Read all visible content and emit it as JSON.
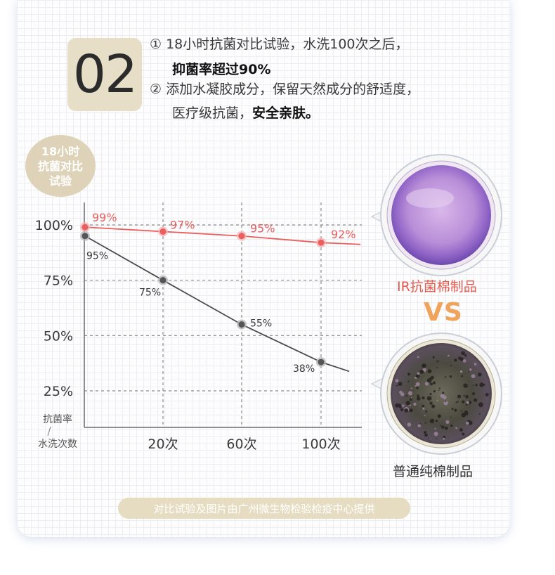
{
  "header": {
    "number": "02",
    "line1_text": "① 18小时抗菌对比试验，水洗100次之后，",
    "line2_bold": "抑菌率超过90%",
    "line3_text": "② 添加水凝胶成分，保留天然成分的舒适度，",
    "line4_text": "医疗级抗菌，",
    "line4_bold": "安全亲肤。"
  },
  "badge": {
    "line1": "18小时",
    "line2": "抗菌对比",
    "line3": "试验"
  },
  "chart_data": {
    "type": "line",
    "x": [
      "0",
      "20次",
      "60次",
      "100次"
    ],
    "x_tick_labels": [
      "20次",
      "60次",
      "100次"
    ],
    "y_tick_labels": [
      "100%",
      "75%",
      "50%",
      "25%"
    ],
    "ylim": [
      25,
      100
    ],
    "xlabel": "水洗次数",
    "ylabel": "抗菌率",
    "series": [
      {
        "color": "#e95e5e",
        "values": [
          99,
          97,
          95,
          92
        ],
        "labels": [
          "99%",
          "97%",
          "95%",
          "92%"
        ]
      },
      {
        "color": "#4a4a4a",
        "values": [
          95,
          75,
          55,
          38
        ],
        "labels": [
          "95%",
          "75%",
          "55%",
          "38%"
        ]
      }
    ],
    "grid": true
  },
  "dishes": {
    "top_label": "IR抗菌棉制品",
    "vs": "VS",
    "bottom_label": "普通纯棉制品",
    "top_label_color": "#e55a4e",
    "bottom_label_color": "#333333"
  },
  "footnote": "对比试验及图片由广州微生物检验检疫中心提供"
}
